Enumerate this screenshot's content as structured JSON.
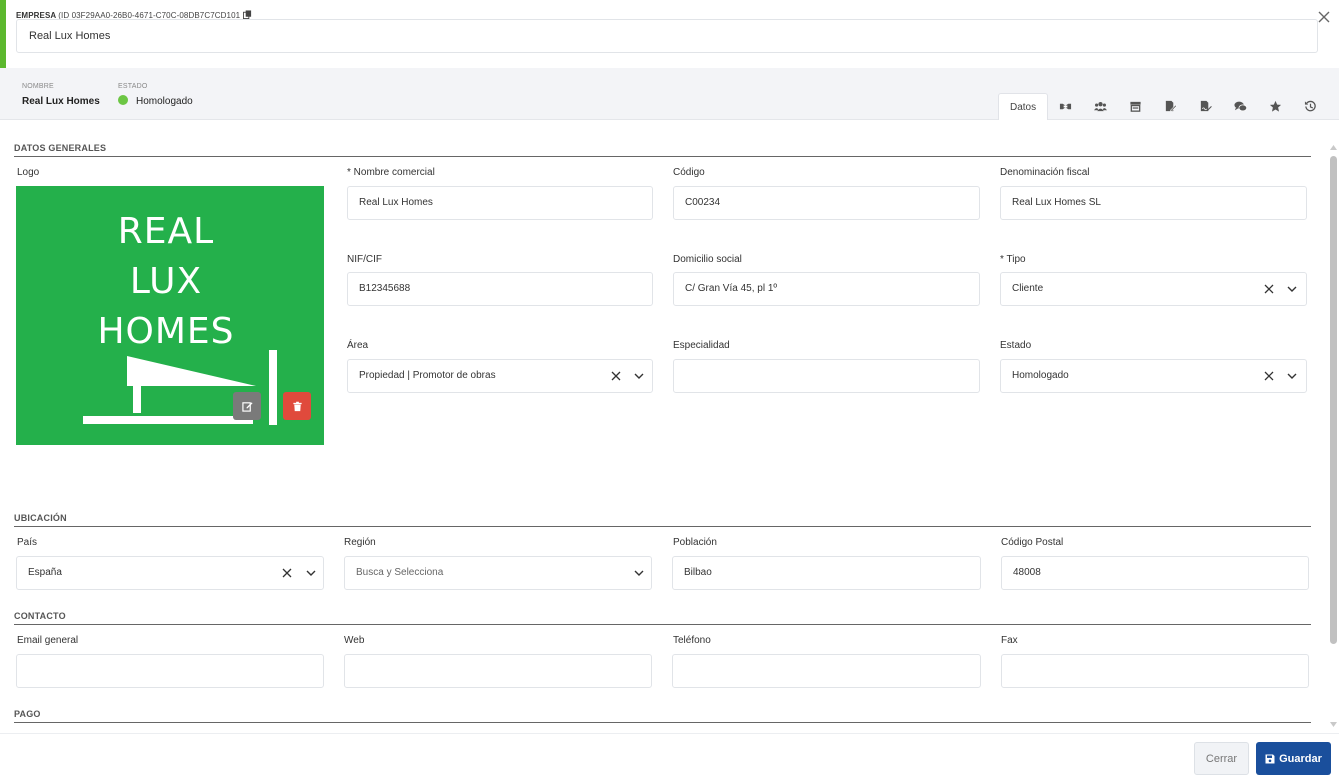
{
  "header": {
    "entity_label": "EMPRESA",
    "entity_id": "(ID 03F29AA0-26B0-4671-C70C-08DB7C7CD101",
    "name_value": "Real Lux Homes"
  },
  "summary": {
    "name_label": "NOMBRE",
    "name_value": "Real Lux Homes",
    "status_label": "ESTADO",
    "status_value": "Homologado",
    "status_color": "#6cc644"
  },
  "tabs": {
    "active_label": "Datos",
    "icons": [
      "handshake-icon",
      "users-icon",
      "store-icon",
      "document-edit-icon",
      "document-sign-icon",
      "comments-icon",
      "star-icon",
      "history-icon"
    ]
  },
  "datos_generales": {
    "title": "DATOS GENERALES",
    "logo_label": "Logo",
    "logo_text": [
      "REAL",
      "LUX",
      "HOMES"
    ],
    "nombre_comercial": {
      "label": "* Nombre comercial",
      "value": "Real Lux Homes"
    },
    "codigo": {
      "label": "Código",
      "value": "C00234"
    },
    "denominacion_fiscal": {
      "label": "Denominación fiscal",
      "value": "Real Lux Homes SL"
    },
    "nif": {
      "label": "NIF/CIF",
      "value": "B12345688"
    },
    "domicilio": {
      "label": "Domicilio social",
      "value": "C/ Gran Vía 45, pl 1º"
    },
    "tipo": {
      "label": "* Tipo",
      "value": "Cliente"
    },
    "area": {
      "label": "Área",
      "value": "Propiedad | Promotor de obras"
    },
    "especialidad": {
      "label": "Especialidad",
      "value": ""
    },
    "estado": {
      "label": "Estado",
      "value": "Homologado"
    }
  },
  "ubicacion": {
    "title": "UBICACIÓN",
    "pais": {
      "label": "País",
      "value": "España"
    },
    "region": {
      "label": "Región",
      "placeholder": "Busca y Selecciona"
    },
    "poblacion": {
      "label": "Población",
      "value": "Bilbao"
    },
    "codigo_postal": {
      "label": "Código Postal",
      "value": "48008"
    }
  },
  "contacto": {
    "title": "CONTACTO",
    "email": {
      "label": "Email general",
      "value": ""
    },
    "web": {
      "label": "Web",
      "value": ""
    },
    "telefono": {
      "label": "Teléfono",
      "value": ""
    },
    "fax": {
      "label": "Fax",
      "value": ""
    }
  },
  "pago": {
    "title": "PAGO"
  },
  "footer": {
    "close_label": "Cerrar",
    "save_label": "Guardar"
  },
  "colors": {
    "accent": "#5cb82e",
    "logo_bg": "#24b04b",
    "save_button": "#1a4f9c",
    "delete_button": "#e04a3c",
    "edit_button": "#7a7a7a"
  }
}
